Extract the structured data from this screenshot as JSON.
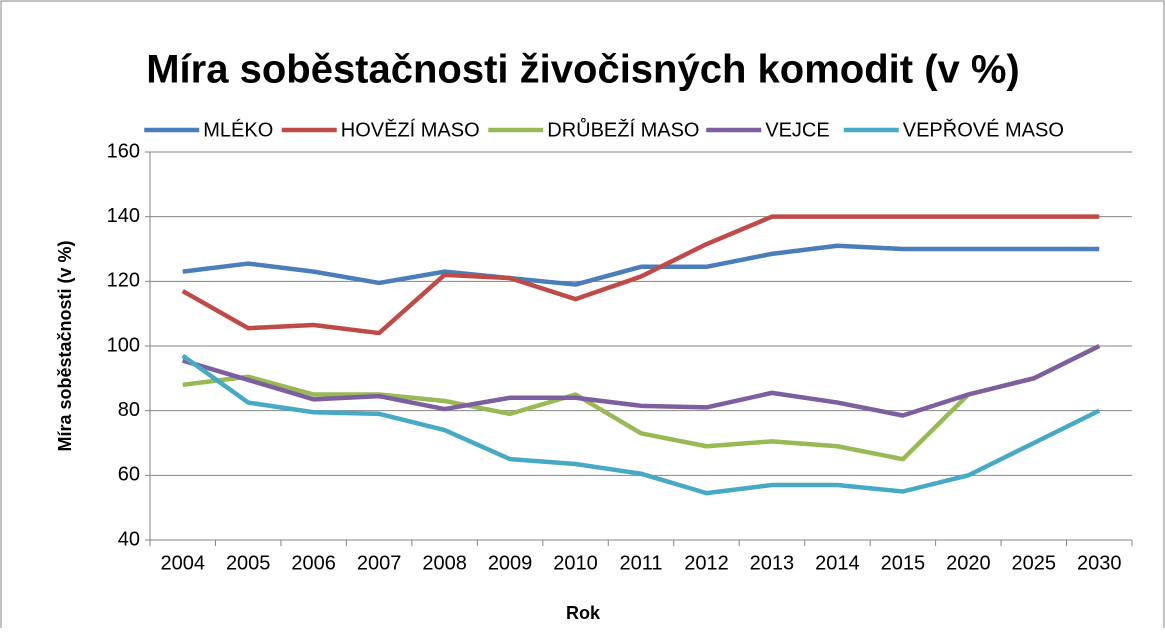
{
  "chart_data": {
    "type": "line",
    "title": "Míra soběstačnosti živočisných komodit (v %)",
    "xlabel": "Rok",
    "ylabel": "Míra soběstačnosti (v %)",
    "categories": [
      "2004",
      "2005",
      "2006",
      "2007",
      "2008",
      "2009",
      "2010",
      "2011",
      "2012",
      "2013",
      "2014",
      "2015",
      "2020",
      "2025",
      "2030"
    ],
    "series": [
      {
        "name": "MLÉKO",
        "color": "#4a7ebb",
        "values": [
          123,
          125.5,
          123,
          119.5,
          123,
          121,
          119,
          124.5,
          124.5,
          128.5,
          131,
          130,
          130,
          130,
          130
        ]
      },
      {
        "name": "HOVĚZÍ MASO",
        "color": "#be4b48",
        "values": [
          117,
          105.5,
          106.5,
          104,
          122,
          121,
          114.5,
          121.5,
          131.5,
          140,
          140,
          140,
          140,
          140,
          140
        ]
      },
      {
        "name": "DRŮBEŽÍ MASO",
        "color": "#98b954",
        "values": [
          88,
          90.5,
          85,
          85,
          83,
          79,
          85,
          73,
          69,
          70.5,
          69,
          65,
          85,
          90,
          100
        ]
      },
      {
        "name": "VEJCE",
        "color": "#7d5fa0",
        "values": [
          95.5,
          89.5,
          83.5,
          84.5,
          80.5,
          84,
          84,
          81.5,
          81,
          85.5,
          82.5,
          78.5,
          85,
          90,
          100
        ]
      },
      {
        "name": "VEPŘOVÉ MASO",
        "color": "#46aac5",
        "values": [
          97,
          82.5,
          79.5,
          79,
          74,
          65,
          63.5,
          60.5,
          54.5,
          57,
          57,
          55,
          60,
          70,
          80
        ]
      }
    ],
    "ylim": [
      40,
      160
    ],
    "yticks": [
      40,
      60,
      80,
      100,
      120,
      140,
      160
    ],
    "grid": true,
    "legend": "top"
  }
}
